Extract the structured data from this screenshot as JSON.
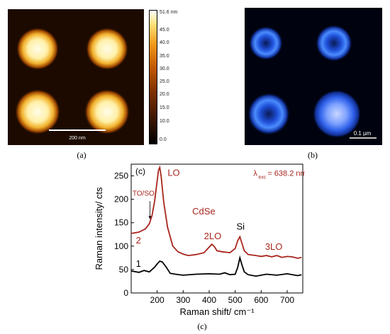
{
  "panel_a": {
    "label": "(a)",
    "scalebar_label": "200 nm",
    "colorbar": {
      "max_label": "51.6 nm",
      "ticks": [
        "45.0",
        "40.0",
        "35.0",
        "30.0",
        "25.0",
        "20.0",
        "15.0",
        "10.0",
        "0.0"
      ]
    }
  },
  "panel_b": {
    "label": "(b)",
    "scalebar_label": "0.1 µm"
  },
  "panel_c": {
    "label": "(c)",
    "inset_label": "(c)"
  },
  "chart_data": {
    "type": "line",
    "xlabel": "Raman shift/ cm⁻¹",
    "ylabel": "Raman intensity/ cts",
    "xlim": [
      100,
      760
    ],
    "ylim": [
      0,
      275
    ],
    "xticks": [
      200,
      300,
      400,
      500,
      600,
      700
    ],
    "yticks": [
      0,
      50,
      100,
      150,
      200,
      250
    ],
    "grid": false,
    "series": [
      {
        "name": "2",
        "color": "#a8251c",
        "x": [
          100,
          130,
          155,
          170,
          180,
          190,
          200,
          205,
          210,
          215,
          225,
          240,
          260,
          280,
          300,
          320,
          350,
          380,
          395,
          410,
          420,
          430,
          450,
          480,
          500,
          510,
          518,
          525,
          535,
          550,
          580,
          600,
          620,
          640,
          660,
          680,
          700,
          720,
          740,
          755
        ],
        "y": [
          127,
          130,
          137,
          148,
          165,
          195,
          240,
          262,
          268,
          250,
          195,
          140,
          100,
          88,
          83,
          80,
          82,
          86,
          95,
          104,
          99,
          90,
          88,
          86,
          95,
          112,
          120,
          108,
          90,
          82,
          80,
          78,
          80,
          77,
          80,
          76,
          78,
          77,
          74,
          76
        ]
      },
      {
        "name": "1",
        "color": "#000000",
        "x": [
          100,
          130,
          150,
          170,
          190,
          200,
          210,
          220,
          235,
          250,
          270,
          300,
          350,
          400,
          440,
          460,
          480,
          500,
          510,
          518,
          525,
          535,
          550,
          580,
          620,
          660,
          700,
          740,
          755
        ],
        "y": [
          47,
          44,
          48,
          45,
          55,
          62,
          68,
          66,
          55,
          42,
          40,
          38,
          40,
          41,
          40,
          43,
          39,
          40,
          55,
          75,
          62,
          45,
          39,
          36,
          40,
          38,
          41,
          37,
          39
        ]
      }
    ],
    "annotations": {
      "curve_label_2": "2",
      "curve_label_1": "1",
      "peak_LO": "LO",
      "peak_TO": "TO/SO",
      "material": "CdSe",
      "peak_2LO": "2LO",
      "peak_Si": "Si",
      "peak_3LO": "3LO",
      "excitation_main": "λ",
      "excitation_sub": "exc",
      "excitation_value": "= 638.2 nm"
    }
  }
}
